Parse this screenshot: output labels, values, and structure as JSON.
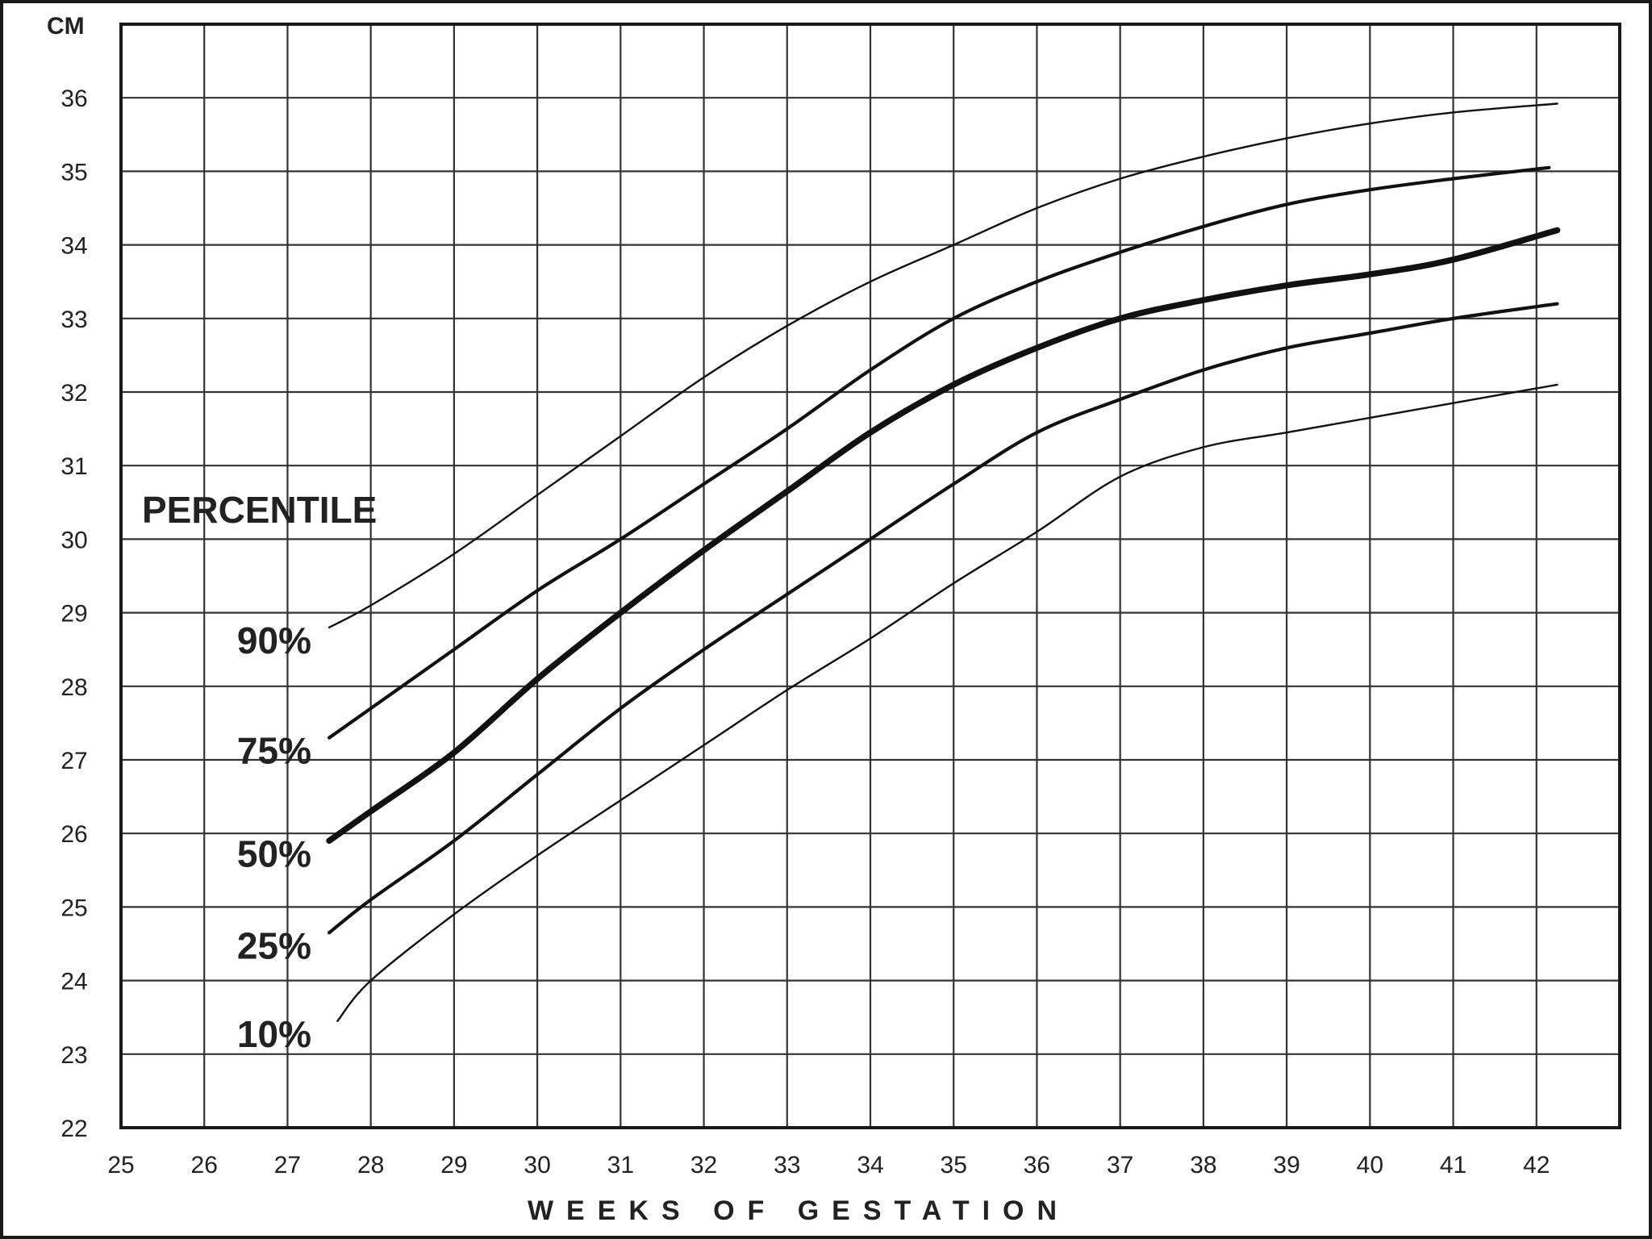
{
  "chart_data": {
    "type": "line",
    "title": "",
    "xlabel": "WEEKS OF GESTATION",
    "ylabel": "CM",
    "xlim": [
      25,
      43
    ],
    "ylim": [
      22,
      37
    ],
    "grid": true,
    "x_ticks": [
      25,
      26,
      27,
      28,
      29,
      30,
      31,
      32,
      33,
      34,
      35,
      36,
      37,
      38,
      39,
      40,
      41,
      42
    ],
    "y_ticks": [
      22,
      23,
      24,
      25,
      26,
      27,
      28,
      29,
      30,
      31,
      32,
      33,
      34,
      35,
      36
    ],
    "legend_title": "PERCENTILE",
    "series": [
      {
        "name": "90%",
        "weight": "thin",
        "x": [
          27.5,
          28,
          29,
          30,
          31,
          32,
          33,
          34,
          35,
          36,
          37,
          38,
          39,
          40,
          41,
          42.25
        ],
        "values": [
          28.8,
          29.1,
          29.8,
          30.6,
          31.4,
          32.2,
          32.9,
          33.5,
          34.0,
          34.5,
          34.9,
          35.2,
          35.45,
          35.65,
          35.8,
          35.92
        ]
      },
      {
        "name": "75%",
        "weight": "medium",
        "x": [
          27.5,
          28,
          29,
          30,
          31,
          32,
          33,
          34,
          35,
          36,
          37,
          38,
          39,
          40,
          41,
          42.15
        ],
        "values": [
          27.3,
          27.7,
          28.5,
          29.3,
          30.0,
          30.75,
          31.5,
          32.3,
          33.0,
          33.5,
          33.9,
          34.25,
          34.55,
          34.75,
          34.9,
          35.05
        ]
      },
      {
        "name": "50%",
        "weight": "thick",
        "x": [
          27.5,
          28,
          29,
          30,
          31,
          32,
          33,
          34,
          35,
          36,
          37,
          38,
          39,
          40,
          41,
          42.25
        ],
        "values": [
          25.9,
          26.3,
          27.1,
          28.1,
          29.0,
          29.85,
          30.65,
          31.45,
          32.1,
          32.6,
          33.0,
          33.25,
          33.45,
          33.6,
          33.8,
          34.2
        ]
      },
      {
        "name": "25%",
        "weight": "medium",
        "x": [
          27.5,
          28,
          29,
          30,
          31,
          32,
          33,
          34,
          35,
          36,
          37,
          38,
          39,
          40,
          41,
          42.25
        ],
        "values": [
          24.65,
          25.1,
          25.9,
          26.8,
          27.7,
          28.5,
          29.25,
          30.0,
          30.75,
          31.45,
          31.9,
          32.3,
          32.6,
          32.8,
          33.0,
          33.2
        ]
      },
      {
        "name": "10%",
        "weight": "thin",
        "x": [
          27.6,
          28,
          29,
          30,
          31,
          32,
          33,
          34,
          35,
          36,
          37,
          38,
          39,
          40,
          41,
          42.25
        ],
        "values": [
          23.45,
          24.0,
          24.9,
          25.7,
          26.45,
          27.2,
          27.95,
          28.65,
          29.4,
          30.1,
          30.85,
          31.25,
          31.45,
          31.65,
          31.85,
          32.1
        ]
      }
    ]
  }
}
